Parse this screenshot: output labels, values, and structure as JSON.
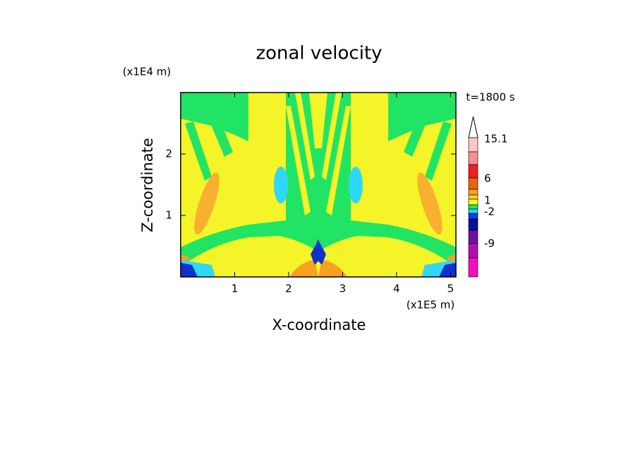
{
  "chart_data": {
    "type": "contour",
    "title": "zonal velocity",
    "xlabel": "X-coordinate",
    "ylabel": "Z-coordinate",
    "x_unit": "(x1E5 m)",
    "y_unit": "(x1E4 m)",
    "annotation": "t=1800 s",
    "xlim": [
      0,
      5.1
    ],
    "xticks": [
      1,
      2,
      3,
      4,
      5
    ],
    "ylim": [
      0,
      3
    ],
    "yticks": [
      1,
      2
    ],
    "colorbar_ticks": [
      15.1,
      6,
      1,
      -2,
      -9
    ],
    "colorbar_colors": [
      "#f8c8c8",
      "#f49090",
      "#ee2020",
      "#f06010",
      "#f8a020",
      "#f8d020",
      "#f8f820",
      "#20e860",
      "#20d8f8",
      "#1040e0",
      "#0010a0",
      "#7010a0",
      "#b010b0",
      "#f010c0"
    ]
  }
}
